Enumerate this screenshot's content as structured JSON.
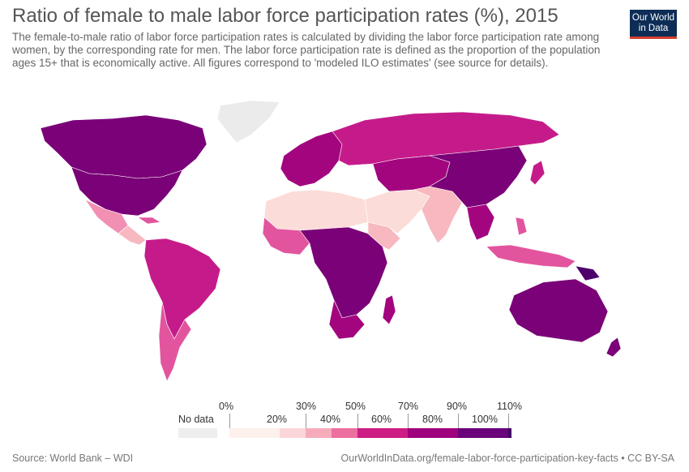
{
  "header": {
    "title": "Ratio of female to male labor force participation rates (%), 2015",
    "subtitle": "The female-to-male ratio of labor force participation rates is calculated by dividing the labor force participation rate among women, by the corresponding rate for men. The labor force participation rate is defined as the proportion of the population ages 15+ that is economically active. All figures correspond to 'modeled ILO estimates' (see source for details)."
  },
  "logo": {
    "line1": "Our World",
    "line2": "in Data"
  },
  "legend": {
    "no_data_label": "No data",
    "no_data_color": "#eeeeee",
    "top_labels": [
      "0%",
      "30%",
      "50%",
      "70%",
      "90%",
      "110%"
    ],
    "bottom_labels": [
      "20%",
      "40%",
      "60%",
      "80%",
      "100%"
    ],
    "colors": [
      "#fdf1ee",
      "#fbd6d8",
      "#f6abbb",
      "#ec6fa0",
      "#cc1e84",
      "#a0017e",
      "#6a007a",
      "#420064"
    ]
  },
  "colors": {
    "no_data": "#ebebeb",
    "c20": "#fcdcd8",
    "c40": "#f7b8c0",
    "c50": "#f290b4",
    "c60": "#e2559e",
    "c70": "#c51b8a",
    "c80": "#a3057f",
    "c90": "#7a0177",
    "c100": "#4d006b"
  },
  "footer": {
    "source": "Source: World Bank – WDI",
    "link": "OurWorldInData.org/female-labor-force-participation-key-facts • CC BY-SA"
  }
}
